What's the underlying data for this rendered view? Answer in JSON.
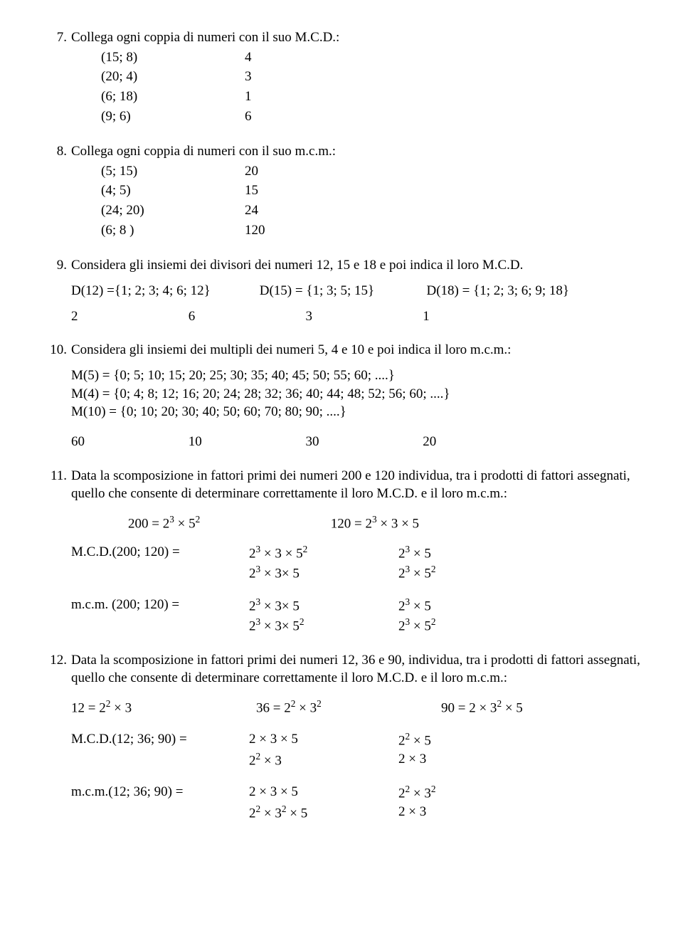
{
  "ex7": {
    "num": "7.",
    "title": "Collega ogni coppia di numeri con il suo M.C.D.:",
    "rows": [
      {
        "pair": "(15; 8)",
        "val": "4"
      },
      {
        "pair": "(20; 4)",
        "val": "3"
      },
      {
        "pair": "(6; 18)",
        "val": "1"
      },
      {
        "pair": "(9; 6)",
        "val": "6"
      }
    ]
  },
  "ex8": {
    "num": "8.",
    "title": "Collega ogni coppia di numeri con il suo m.c.m.:",
    "rows": [
      {
        "pair": "(5; 15)",
        "val": "20"
      },
      {
        "pair": "(4; 5)",
        "val": "15"
      },
      {
        "pair": "(24; 20)",
        "val": "24"
      },
      {
        "pair": "(6; 8 )",
        "val": "120"
      }
    ]
  },
  "ex9": {
    "num": "9.",
    "title": "Considera gli insiemi dei divisori dei numeri 12, 15 e 18 e poi indica il loro  M.C.D.",
    "d12": "D(12) ={1; 2; 3; 4; 6; 12}",
    "d15": "D(15) = {1; 3; 5; 15}",
    "d18": "D(18) = {1; 2; 3; 6; 9; 18}",
    "opts": [
      " 2",
      " 6",
      " 3",
      " 1"
    ]
  },
  "ex10": {
    "num": "10.",
    "title": "Considera gli insiemi dei multipli dei numeri 5, 4 e 10 e poi indica il loro m.c.m.:",
    "m5": "M(5) = {0; 5; 10; 15; 20; 25; 30; 35; 40; 45; 50; 55; 60; ....}",
    "m4": "M(4) = {0; 4; 8; 12; 16; 20; 24; 28; 32; 36; 40; 44; 48; 52; 56; 60; ....}",
    "m10": "M(10) = {0; 10; 20; 30; 40; 50; 60; 70; 80; 90; ....}",
    "opts": [
      " 60",
      " 10",
      " 30",
      " 20"
    ]
  },
  "ex11": {
    "num": "11.",
    "title": "Data la scomposizione in fattori primi dei numeri 200 e 120 individua, tra i prodotti di fattori assegnati, quello che consente di determinare correttamente il loro M.C.D. e il loro  m.c.m.:",
    "fa": "200 = 2³ × 5²",
    "fb": "120 =  2³ × 3 × 5",
    "mcd_label": "M.C.D.(200; 120) =",
    "mcd": [
      {
        "a": " 2³ × 3 × 5²",
        "b": " 2³ × 5"
      },
      {
        "a": " 2³ × 3× 5",
        "b": " 2³ × 5²"
      }
    ],
    "mcm_label": "m.c.m. (200; 120) =",
    "mcm": [
      {
        "a": " 2³ × 3× 5",
        "b": " 2³ × 5"
      },
      {
        "a": " 2³ × 3× 5²",
        "b": " 2³ × 5²"
      }
    ]
  },
  "ex12": {
    "num": "12.",
    "title": "Data la scomposizione in fattori primi dei numeri 12, 36 e 90, individua, tra i prodotti di fattori assegnati, quello che consente di determinare correttamente il loro M.C.D. e il loro  m.c.m.:",
    "f12": "12 = 2² × 3",
    "f36": "36 = 2² × 3²",
    "f90": "90 = 2 × 3² × 5",
    "mcd_label": "M.C.D.(12; 36; 90) =",
    "mcd": [
      {
        "a": " 2 × 3 × 5",
        "b": " 2² × 5"
      },
      {
        "a": " 2² × 3",
        "b": " 2 × 3"
      }
    ],
    "mcm_label": "m.c.m.(12; 36; 90) =",
    "mcm": [
      {
        "a": " 2 × 3 × 5",
        "b": " 2² × 3²"
      },
      {
        "a": " 2² × 3² × 5",
        "b": " 2 × 3"
      }
    ]
  }
}
